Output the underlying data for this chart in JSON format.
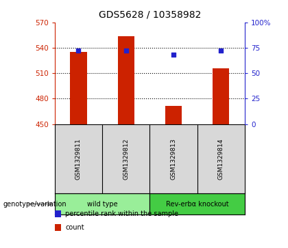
{
  "title": "GDS5628 / 10358982",
  "samples": [
    "GSM1329811",
    "GSM1329812",
    "GSM1329813",
    "GSM1329814"
  ],
  "counts": [
    535,
    554,
    471,
    516
  ],
  "percentile_ranks": [
    72,
    72,
    68,
    72
  ],
  "ylim_left": [
    450,
    570
  ],
  "yticks_left": [
    450,
    480,
    510,
    540,
    570
  ],
  "ylim_right": [
    0,
    100
  ],
  "yticks_right": [
    0,
    25,
    50,
    75,
    100
  ],
  "bar_color": "#cc2200",
  "dot_color": "#2222cc",
  "groups": [
    {
      "label": "wild type",
      "samples": [
        0,
        1
      ],
      "color": "#99ee99"
    },
    {
      "label": "Rev-erbα knockout",
      "samples": [
        2,
        3
      ],
      "color": "#44cc44"
    }
  ],
  "group_label": "genotype/variation",
  "legend_items": [
    {
      "color": "#cc2200",
      "label": "count"
    },
    {
      "color": "#2222cc",
      "label": "percentile rank within the sample"
    }
  ],
  "title_fontsize": 10,
  "axis_color_left": "#cc2200",
  "axis_color_right": "#2222cc",
  "bar_width": 0.35,
  "sample_bg": "#d8d8d8",
  "gridline_dotted_vals": [
    480,
    510,
    540
  ]
}
